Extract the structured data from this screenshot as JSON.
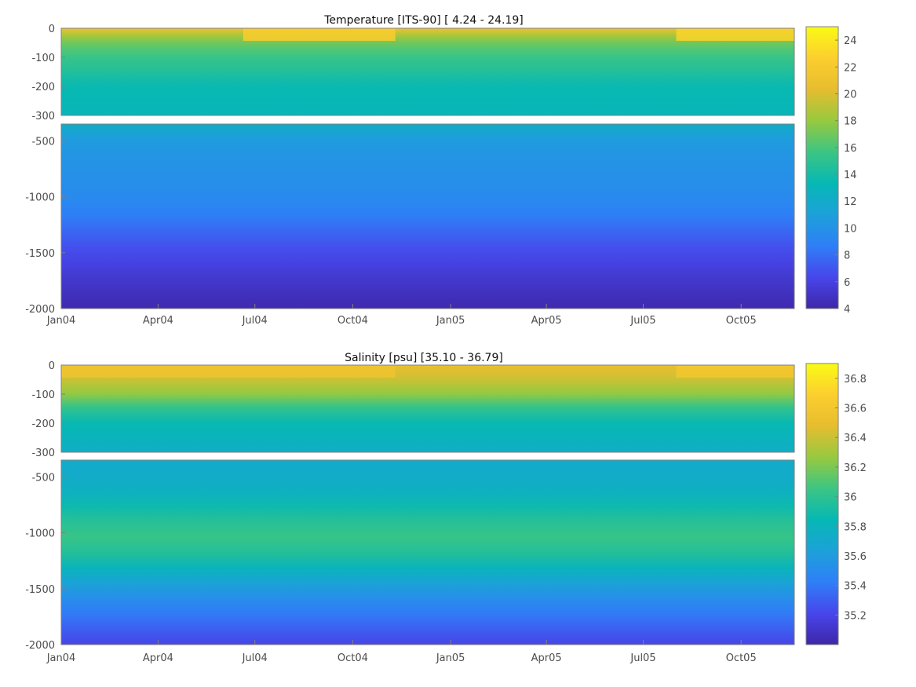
{
  "chart_data": [
    {
      "type": "heatmap",
      "title": "Temperature [ITS-90]   [ 4.24 - 24.19]",
      "xlabel": "",
      "ylabel": "",
      "x_tick_labels": [
        "Jan04",
        "Apr04",
        "Jul04",
        "Oct04",
        "Jan05",
        "Apr05",
        "Jul05",
        "Oct05"
      ],
      "x_range": [
        "2004-01-01",
        "2005-11-20"
      ],
      "upper_panel": {
        "y_range": [
          -300,
          0
        ],
        "y_ticks": [
          "0",
          "-100",
          "-200",
          "-300"
        ]
      },
      "lower_panel": {
        "y_range": [
          -2000,
          -350
        ],
        "y_ticks": [
          "-500",
          "-1000",
          "-1500",
          "-2000"
        ]
      },
      "colorbar": {
        "range": [
          4,
          25
        ],
        "ticks": [
          "24",
          "22",
          "20",
          "18",
          "16",
          "14",
          "12",
          "10",
          "8",
          "6",
          "4"
        ]
      },
      "profile": {
        "depths": [
          0,
          -30,
          -60,
          -100,
          -150,
          -200,
          -300,
          -400,
          -500,
          -700,
          -1000,
          -1200,
          -1400,
          -1600,
          -1800,
          -2000
        ],
        "values": [
          21,
          18,
          16.5,
          15.5,
          14.5,
          13.5,
          13,
          11.5,
          10.5,
          10,
          9.5,
          8.5,
          7,
          6,
          5,
          4.3
        ]
      },
      "surface_warm_periods": [
        {
          "start": "2004-06-20",
          "end": "2004-11-10",
          "value": 22.5
        },
        {
          "start": "2005-08-01",
          "end": "2005-11-20",
          "value": 23
        }
      ]
    },
    {
      "type": "heatmap",
      "title": "Salinity [psu]   [35.10 - 36.79]",
      "xlabel": "",
      "ylabel": "",
      "x_tick_labels": [
        "Jan04",
        "Apr04",
        "Jul04",
        "Oct04",
        "Jan05",
        "Apr05",
        "Jul05",
        "Oct05"
      ],
      "x_range": [
        "2004-01-01",
        "2005-11-20"
      ],
      "upper_panel": {
        "y_range": [
          -300,
          0
        ],
        "y_ticks": [
          "0",
          "-100",
          "-200",
          "-300"
        ]
      },
      "lower_panel": {
        "y_range": [
          -2000,
          -350
        ],
        "y_ticks": [
          "-500",
          "-1000",
          "-1500",
          "-2000"
        ]
      },
      "colorbar": {
        "range": [
          35.0,
          36.9
        ],
        "ticks": [
          "36.8",
          "36.6",
          "36.4",
          "36.2",
          "36",
          "35.8",
          "35.6",
          "35.4",
          "35.2"
        ]
      },
      "profile": {
        "depths": [
          0,
          -50,
          -100,
          -150,
          -200,
          -300,
          -400,
          -600,
          -800,
          -1000,
          -1200,
          -1400,
          -1600,
          -1800,
          -2000
        ],
        "values": [
          36.5,
          36.4,
          36.25,
          36.0,
          35.85,
          35.75,
          35.7,
          35.75,
          35.9,
          36.05,
          35.95,
          35.7,
          35.5,
          35.35,
          35.2
        ]
      },
      "surface_warm_periods": [
        {
          "start": "2004-01-01",
          "end": "2004-11-10",
          "value": 36.55
        },
        {
          "start": "2005-08-01",
          "end": "2005-11-20",
          "value": 36.6
        }
      ]
    }
  ],
  "colors": {
    "colormap": [
      "#3e26a8",
      "#4746eb",
      "#2f7ff7",
      "#1ca1d9",
      "#06b8b4",
      "#3cc583",
      "#97c93f",
      "#e6bd2f",
      "#fcce2e",
      "#f9fb15"
    ],
    "axis": "#808080",
    "gap": "#ffffff"
  }
}
